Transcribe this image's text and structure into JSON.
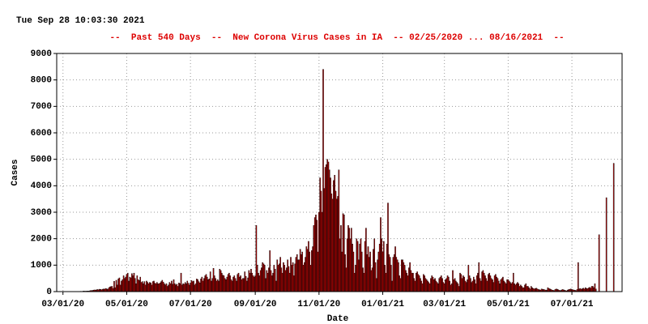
{
  "chart_data": {
    "type": "bar",
    "timestamp": "Tue Sep 28 10:03:30 2021",
    "title": "--  Past 540 Days  --  New Corona Virus Cases in IA  -- 02/25/2020 ... 08/16/2021  --",
    "xlabel": "Date",
    "ylabel": "Cases",
    "color": "#b00000",
    "title_color": "#dd0000",
    "grid": true,
    "xlim": [
      "02/24/20",
      "08/18/21"
    ],
    "xticks": [
      "03/01/20",
      "05/01/20",
      "07/01/20",
      "09/01/20",
      "11/01/20",
      "01/01/21",
      "03/01/21",
      "05/01/21",
      "07/01/21"
    ],
    "ylim": [
      0,
      9000
    ],
    "yticks": [
      0,
      1000,
      2000,
      3000,
      4000,
      5000,
      6000,
      7000,
      8000,
      9000
    ],
    "x": [
      "02/25/20",
      "02/26/20",
      "02/27/20",
      "02/28/20",
      "02/29/20",
      "03/01/20",
      "03/02/20",
      "03/03/20",
      "03/04/20",
      "03/05/20",
      "03/06/20",
      "03/07/20",
      "03/08/20",
      "03/09/20",
      "03/10/20",
      "03/11/20",
      "03/12/20",
      "03/13/20",
      "03/14/20",
      "03/15/20",
      "03/16/20",
      "03/17/20",
      "03/18/20",
      "03/19/20",
      "03/20/20",
      "03/21/20",
      "03/22/20",
      "03/23/20",
      "03/24/20",
      "03/25/20",
      "03/26/20",
      "03/27/20",
      "03/28/20",
      "03/29/20",
      "03/30/20",
      "03/31/20",
      "04/01/20",
      "04/02/20",
      "04/03/20",
      "04/04/20",
      "04/05/20",
      "04/06/20",
      "04/07/20",
      "04/08/20",
      "04/09/20",
      "04/10/20",
      "04/11/20",
      "04/12/20",
      "04/13/20",
      "04/14/20",
      "04/15/20",
      "04/16/20",
      "04/17/20",
      "04/18/20",
      "04/19/20",
      "04/20/20",
      "04/21/20",
      "04/22/20",
      "04/23/20",
      "04/24/20",
      "04/25/20",
      "04/26/20",
      "04/27/20",
      "04/28/20",
      "04/29/20",
      "04/30/20",
      "05/01/20",
      "05/02/20",
      "05/03/20",
      "05/04/20",
      "05/05/20",
      "05/06/20",
      "05/07/20",
      "05/08/20",
      "05/09/20",
      "05/10/20",
      "05/11/20",
      "05/12/20",
      "05/13/20",
      "05/14/20",
      "05/15/20",
      "05/16/20",
      "05/17/20",
      "05/18/20",
      "05/19/20",
      "05/20/20",
      "05/21/20",
      "05/22/20",
      "05/23/20",
      "05/24/20",
      "05/25/20",
      "05/26/20",
      "05/27/20",
      "05/28/20",
      "05/29/20",
      "05/30/20",
      "05/31/20",
      "06/01/20",
      "06/02/20",
      "06/03/20",
      "06/04/20",
      "06/05/20",
      "06/06/20",
      "06/07/20",
      "06/08/20",
      "06/09/20",
      "06/10/20",
      "06/11/20",
      "06/12/20",
      "06/13/20",
      "06/14/20",
      "06/15/20",
      "06/16/20",
      "06/17/20",
      "06/18/20",
      "06/19/20",
      "06/20/20",
      "06/21/20",
      "06/22/20",
      "06/23/20",
      "06/24/20",
      "06/25/20",
      "06/26/20",
      "06/27/20",
      "06/28/20",
      "06/29/20",
      "06/30/20",
      "07/01/20",
      "07/02/20",
      "07/03/20",
      "07/04/20",
      "07/05/20",
      "07/06/20",
      "07/07/20",
      "07/08/20",
      "07/09/20",
      "07/10/20",
      "07/11/20",
      "07/12/20",
      "07/13/20",
      "07/14/20",
      "07/15/20",
      "07/16/20",
      "07/17/20",
      "07/18/20",
      "07/19/20",
      "07/20/20",
      "07/21/20",
      "07/22/20",
      "07/23/20",
      "07/24/20",
      "07/25/20",
      "07/26/20",
      "07/27/20",
      "07/28/20",
      "07/29/20",
      "07/30/20",
      "07/31/20",
      "08/01/20",
      "08/02/20",
      "08/03/20",
      "08/04/20",
      "08/05/20",
      "08/06/20",
      "08/07/20",
      "08/08/20",
      "08/09/20",
      "08/10/20",
      "08/11/20",
      "08/12/20",
      "08/13/20",
      "08/14/20",
      "08/15/20",
      "08/16/20",
      "08/17/20",
      "08/18/20",
      "08/19/20",
      "08/20/20",
      "08/21/20",
      "08/22/20",
      "08/23/20",
      "08/24/20",
      "08/25/20",
      "08/26/20",
      "08/27/20",
      "08/28/20",
      "08/29/20",
      "08/30/20",
      "08/31/20",
      "09/01/20",
      "09/02/20",
      "09/03/20",
      "09/04/20",
      "09/05/20",
      "09/06/20",
      "09/07/20",
      "09/08/20",
      "09/09/20",
      "09/10/20",
      "09/11/20",
      "09/12/20",
      "09/13/20",
      "09/14/20",
      "09/15/20",
      "09/16/20",
      "09/17/20",
      "09/18/20",
      "09/19/20",
      "09/20/20",
      "09/21/20",
      "09/22/20",
      "09/23/20",
      "09/24/20",
      "09/25/20",
      "09/26/20",
      "09/27/20",
      "09/28/20",
      "09/29/20",
      "09/30/20",
      "10/01/20",
      "10/02/20",
      "10/03/20",
      "10/04/20",
      "10/05/20",
      "10/06/20",
      "10/07/20",
      "10/08/20",
      "10/09/20",
      "10/10/20",
      "10/11/20",
      "10/12/20",
      "10/13/20",
      "10/14/20",
      "10/15/20",
      "10/16/20",
      "10/17/20",
      "10/18/20",
      "10/19/20",
      "10/20/20",
      "10/21/20",
      "10/22/20",
      "10/23/20",
      "10/24/20",
      "10/25/20",
      "10/26/20",
      "10/27/20",
      "10/28/20",
      "10/29/20",
      "10/30/20",
      "10/31/20",
      "11/01/20",
      "11/02/20",
      "11/03/20",
      "11/04/20",
      "11/05/20",
      "11/06/20",
      "11/07/20",
      "11/08/20",
      "11/09/20",
      "11/10/20",
      "11/11/20",
      "11/12/20",
      "11/13/20",
      "11/14/20",
      "11/15/20",
      "11/16/20",
      "11/17/20",
      "11/18/20",
      "11/19/20",
      "11/20/20",
      "11/21/20",
      "11/22/20",
      "11/23/20",
      "11/24/20",
      "11/25/20",
      "11/26/20",
      "11/27/20",
      "11/28/20",
      "11/29/20",
      "11/30/20",
      "12/01/20",
      "12/02/20",
      "12/03/20",
      "12/04/20",
      "12/05/20",
      "12/06/20",
      "12/07/20",
      "12/08/20",
      "12/09/20",
      "12/10/20",
      "12/11/20",
      "12/12/20",
      "12/13/20",
      "12/14/20",
      "12/15/20",
      "12/16/20",
      "12/17/20",
      "12/18/20",
      "12/19/20",
      "12/20/20",
      "12/21/20",
      "12/22/20",
      "12/23/20",
      "12/24/20",
      "12/25/20",
      "12/26/20",
      "12/27/20",
      "12/28/20",
      "12/29/20",
      "12/30/20",
      "12/31/20",
      "01/01/21",
      "01/02/21",
      "01/03/21",
      "01/04/21",
      "01/05/21",
      "01/06/21",
      "01/07/21",
      "01/08/21",
      "01/09/21",
      "01/10/21",
      "01/11/21",
      "01/12/21",
      "01/13/21",
      "01/14/21",
      "01/15/21",
      "01/16/21",
      "01/17/21",
      "01/18/21",
      "01/19/21",
      "01/20/21",
      "01/21/21",
      "01/22/21",
      "01/23/21",
      "01/24/21",
      "01/25/21",
      "01/26/21",
      "01/27/21",
      "01/28/21",
      "01/29/21",
      "01/30/21",
      "01/31/21",
      "02/01/21",
      "02/02/21",
      "02/03/21",
      "02/04/21",
      "02/05/21",
      "02/06/21",
      "02/07/21",
      "02/08/21",
      "02/09/21",
      "02/10/21",
      "02/11/21",
      "02/12/21",
      "02/13/21",
      "02/14/21",
      "02/15/21",
      "02/16/21",
      "02/17/21",
      "02/18/21",
      "02/19/21",
      "02/20/21",
      "02/21/21",
      "02/22/21",
      "02/23/21",
      "02/24/21",
      "02/25/21",
      "02/26/21",
      "02/27/21",
      "02/28/21",
      "03/01/21",
      "03/02/21",
      "03/03/21",
      "03/04/21",
      "03/05/21",
      "03/06/21",
      "03/07/21",
      "03/08/21",
      "03/09/21",
      "03/10/21",
      "03/11/21",
      "03/12/21",
      "03/13/21",
      "03/14/21",
      "03/15/21",
      "03/16/21",
      "03/17/21",
      "03/18/21",
      "03/19/21",
      "03/20/21",
      "03/21/21",
      "03/22/21",
      "03/23/21",
      "03/24/21",
      "03/25/21",
      "03/26/21",
      "03/27/21",
      "03/28/21",
      "03/29/21",
      "03/30/21",
      "03/31/21",
      "04/01/21",
      "04/02/21",
      "04/03/21",
      "04/04/21",
      "04/05/21",
      "04/06/21",
      "04/07/21",
      "04/08/21",
      "04/09/21",
      "04/10/21",
      "04/11/21",
      "04/12/21",
      "04/13/21",
      "04/14/21",
      "04/15/21",
      "04/16/21",
      "04/17/21",
      "04/18/21",
      "04/19/21",
      "04/20/21",
      "04/21/21",
      "04/22/21",
      "04/23/21",
      "04/24/21",
      "04/25/21",
      "04/26/21",
      "04/27/21",
      "04/28/21",
      "04/29/21",
      "04/30/21",
      "05/01/21",
      "05/02/21",
      "05/03/21",
      "05/04/21",
      "05/05/21",
      "05/06/21",
      "05/07/21",
      "05/08/21",
      "05/09/21",
      "05/10/21",
      "05/11/21",
      "05/12/21",
      "05/13/21",
      "05/14/21",
      "05/15/21",
      "05/16/21",
      "05/17/21",
      "05/18/21",
      "05/19/21",
      "05/20/21",
      "05/21/21",
      "05/22/21",
      "05/23/21",
      "05/24/21",
      "05/25/21",
      "05/26/21",
      "05/27/21",
      "05/28/21",
      "05/29/21",
      "05/30/21",
      "05/31/21",
      "06/01/21",
      "06/02/21",
      "06/03/21",
      "06/04/21",
      "06/05/21",
      "06/06/21",
      "06/07/21",
      "06/08/21",
      "06/09/21",
      "06/10/21",
      "06/11/21",
      "06/12/21",
      "06/13/21",
      "06/14/21",
      "06/15/21",
      "06/16/21",
      "06/17/21",
      "06/18/21",
      "06/19/21",
      "06/20/21",
      "06/21/21",
      "06/22/21",
      "06/23/21",
      "06/24/21",
      "06/25/21",
      "06/26/21",
      "06/27/21",
      "06/28/21",
      "06/29/21",
      "06/30/21",
      "07/01/21",
      "07/02/21",
      "07/03/21",
      "07/04/21",
      "07/05/21",
      "07/06/21",
      "07/07/21",
      "07/08/21",
      "07/09/21",
      "07/10/21",
      "07/11/21",
      "07/12/21",
      "07/13/21",
      "07/14/21",
      "07/15/21",
      "07/16/21",
      "07/17/21",
      "07/18/21",
      "07/19/21",
      "07/20/21",
      "07/21/21",
      "07/22/21",
      "07/23/21",
      "07/24/21",
      "07/25/21",
      "07/26/21",
      "07/27/21",
      "07/28/21",
      "07/29/21",
      "07/30/21",
      "07/31/21",
      "08/01/21",
      "08/02/21",
      "08/03/21",
      "08/04/21",
      "08/05/21",
      "08/06/21",
      "08/07/21",
      "08/08/21",
      "08/09/21",
      "08/10/21",
      "08/11/21",
      "08/12/21",
      "08/13/21",
      "08/14/21",
      "08/15/21",
      "08/16/21"
    ],
    "values": [
      0,
      0,
      0,
      0,
      0,
      0,
      0,
      0,
      0,
      0,
      0,
      0,
      3,
      5,
      4,
      2,
      3,
      6,
      2,
      4,
      5,
      8,
      12,
      6,
      14,
      22,
      15,
      18,
      20,
      22,
      20,
      35,
      44,
      40,
      56,
      63,
      60,
      65,
      80,
      70,
      90,
      85,
      70,
      90,
      100,
      95,
      120,
      100,
      90,
      150,
      180,
      190,
      200,
      120,
      390,
      150,
      430,
      250,
      480,
      520,
      250,
      400,
      450,
      600,
      500,
      550,
      650,
      700,
      400,
      550,
      520,
      680,
      600,
      700,
      500,
      300,
      600,
      450,
      420,
      550,
      350,
      380,
      300,
      380,
      250,
      400,
      350,
      300,
      350,
      330,
      250,
      380,
      400,
      320,
      300,
      350,
      300,
      300,
      330,
      380,
      430,
      360,
      300,
      250,
      300,
      200,
      250,
      350,
      300,
      400,
      280,
      450,
      300,
      250,
      280,
      200,
      330,
      300,
      700,
      250,
      300,
      280,
      350,
      300,
      400,
      320,
      250,
      330,
      420,
      380,
      400,
      250,
      300,
      480,
      450,
      380,
      330,
      480,
      550,
      400,
      500,
      600,
      650,
      550,
      450,
      480,
      750,
      400,
      500,
      880,
      600,
      500,
      400,
      450,
      400,
      850,
      800,
      700,
      620,
      600,
      500,
      450,
      550,
      650,
      700,
      600,
      450,
      400,
      550,
      600,
      500,
      400,
      650,
      700,
      550,
      600,
      450,
      500,
      500,
      750,
      580,
      400,
      520,
      800,
      700,
      850,
      700,
      600,
      550,
      600,
      2500,
      1000,
      700,
      600,
      800,
      900,
      1100,
      1050,
      1000,
      500,
      800,
      700,
      900,
      1550,
      800,
      600,
      700,
      1000,
      850,
      400,
      1200,
      1000,
      1050,
      1300,
      900,
      700,
      1100,
      1000,
      800,
      900,
      1200,
      950,
      700,
      1300,
      1000,
      1100,
      600,
      1050,
      1300,
      1400,
      1200,
      1200,
      1600,
      1400,
      1500,
      1000,
      1100,
      1300,
      1700,
      1600,
      1900,
      1500,
      1000,
      1550,
      1700,
      2500,
      2800,
      2900,
      2700,
      1500,
      3000,
      4300,
      3800,
      3000,
      8400,
      3900,
      4700,
      4800,
      5000,
      4900,
      4600,
      4300,
      3700,
      3500,
      4200,
      4400,
      3800,
      3500,
      3600,
      4600,
      2000,
      2500,
      1500,
      2950,
      2900,
      1400,
      900,
      2000,
      2500,
      2400,
      2000,
      2400,
      1800,
      1500,
      700,
      1000,
      2000,
      1900,
      1200,
      1800,
      2000,
      1500,
      900,
      700,
      1900,
      2400,
      1400,
      1700,
      1300,
      1500,
      800,
      900,
      1600,
      2000,
      1100,
      500,
      1200,
      1500,
      1800,
      2800,
      2000,
      1500,
      1900,
      1000,
      700,
      1800,
      3350,
      1400,
      1300,
      1000,
      400,
      1300,
      1400,
      1700,
      1300,
      1200,
      1100,
      600,
      500,
      1200,
      1200,
      1100,
      1000,
      800,
      700,
      600,
      900,
      1100,
      800,
      700,
      700,
      500,
      400,
      700,
      750,
      650,
      600,
      500,
      400,
      300,
      650,
      600,
      500,
      450,
      400,
      350,
      300,
      500,
      600,
      550,
      450,
      500,
      400,
      350,
      300,
      500,
      550,
      600,
      500,
      350,
      300,
      450,
      500,
      600,
      550,
      400,
      250,
      300,
      800,
      450,
      500,
      400,
      350,
      300,
      200,
      700,
      650,
      500,
      600,
      550,
      400,
      350,
      450,
      1000,
      600,
      500,
      350,
      400,
      550,
      450,
      300,
      600,
      700,
      1100,
      500,
      400,
      750,
      800,
      700,
      600,
      500,
      400,
      650,
      700,
      600,
      500,
      450,
      350,
      600,
      650,
      550,
      500,
      400,
      300,
      450,
      500,
      550,
      400,
      350,
      300,
      450,
      450,
      400,
      350,
      300,
      350,
      700,
      300,
      250,
      300,
      350,
      300,
      200,
      250,
      200,
      150,
      150,
      250,
      300,
      200,
      200,
      150,
      100,
      200,
      150,
      120,
      100,
      120,
      130,
      100,
      80,
      70,
      60,
      100,
      90,
      80,
      70,
      50,
      60,
      150,
      120,
      100,
      80,
      60,
      50,
      40,
      80,
      100,
      90,
      70,
      50,
      40,
      60,
      80,
      70,
      50,
      40,
      30,
      60,
      80,
      90,
      100,
      80,
      70,
      60,
      50,
      40,
      80,
      1100,
      100,
      120,
      90,
      110,
      130,
      100,
      150,
      120,
      110,
      140,
      160,
      130,
      200,
      200,
      150,
      300,
      100,
      0,
      0,
      2150,
      0,
      0,
      0,
      0,
      0,
      0,
      3550,
      0,
      0,
      0,
      0,
      0,
      0,
      4850,
      0,
      0,
      0,
      0,
      0,
      0
    ]
  }
}
